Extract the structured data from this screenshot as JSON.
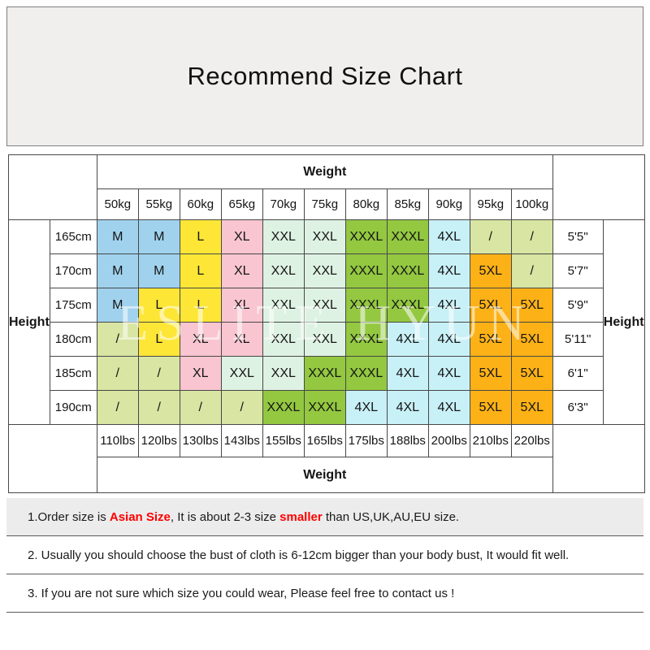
{
  "title": "Recommend Size Chart",
  "watermark": "ESLITE HYUN",
  "chart_data": {
    "type": "table",
    "weight_label": "Weight",
    "height_label": "Height",
    "weight_kg": [
      "50kg",
      "55kg",
      "60kg",
      "65kg",
      "70kg",
      "75kg",
      "80kg",
      "85kg",
      "90kg",
      "95kg",
      "100kg"
    ],
    "weight_lbs": [
      "110lbs",
      "120lbs",
      "130lbs",
      "143lbs",
      "155lbs",
      "165lbs",
      "175lbs",
      "188lbs",
      "200lbs",
      "210lbs",
      "220lbs"
    ],
    "rows": [
      {
        "cm": "165cm",
        "ft": "5'5''",
        "sizes": [
          "M",
          "M",
          "L",
          "XL",
          "XXL",
          "XXL",
          "XXXL",
          "XXXL",
          "4XL",
          "/",
          "/"
        ]
      },
      {
        "cm": "170cm",
        "ft": "5'7''",
        "sizes": [
          "M",
          "M",
          "L",
          "XL",
          "XXL",
          "XXL",
          "XXXL",
          "XXXL",
          "4XL",
          "5XL",
          "/"
        ]
      },
      {
        "cm": "175cm",
        "ft": "5'9''",
        "sizes": [
          "M",
          "L",
          "L",
          "XL",
          "XXL",
          "XXL",
          "XXXL",
          "XXXL",
          "4XL",
          "5XL",
          "5XL"
        ]
      },
      {
        "cm": "180cm",
        "ft": "5'11''",
        "sizes": [
          "/",
          "L",
          "XL",
          "XL",
          "XXL",
          "XXL",
          "XXXL",
          "4XL",
          "4XL",
          "5XL",
          "5XL"
        ]
      },
      {
        "cm": "185cm",
        "ft": "6'1''",
        "sizes": [
          "/",
          "/",
          "XL",
          "XXL",
          "XXL",
          "XXXL",
          "XXXL",
          "4XL",
          "4XL",
          "5XL",
          "5XL"
        ]
      },
      {
        "cm": "190cm",
        "ft": "6'3''",
        "sizes": [
          "/",
          "/",
          "/",
          "/",
          "XXXL",
          "XXXL",
          "4XL",
          "4XL",
          "4XL",
          "5XL",
          "5XL"
        ]
      }
    ],
    "size_colors": {
      "M": "#a0d2ee",
      "L": "#fde636",
      "XL": "#f8c5d0",
      "XXL": "#def2e3",
      "XXXL": "#93c840",
      "4XL": "#c8f0f7",
      "5XL": "#fcb116",
      "/": "#d8e5a3"
    }
  },
  "notes": [
    {
      "segments": [
        {
          "text": "1.Order size is ",
          "red": false
        },
        {
          "text": "Asian Size",
          "red": true
        },
        {
          "text": ", It is about 2-3 size ",
          "red": false
        },
        {
          "text": "smaller",
          "red": true
        },
        {
          "text": " than US,UK,AU,EU size.",
          "red": false
        }
      ]
    },
    {
      "segments": [
        {
          "text": "2. Usually you should choose the bust of cloth is 6-12cm bigger than your body bust, It would fit well.",
          "red": false
        }
      ]
    },
    {
      "segments": [
        {
          "text": "3. If you are not sure which size you could wear, Please feel free to contact us !",
          "red": false
        }
      ]
    }
  ]
}
